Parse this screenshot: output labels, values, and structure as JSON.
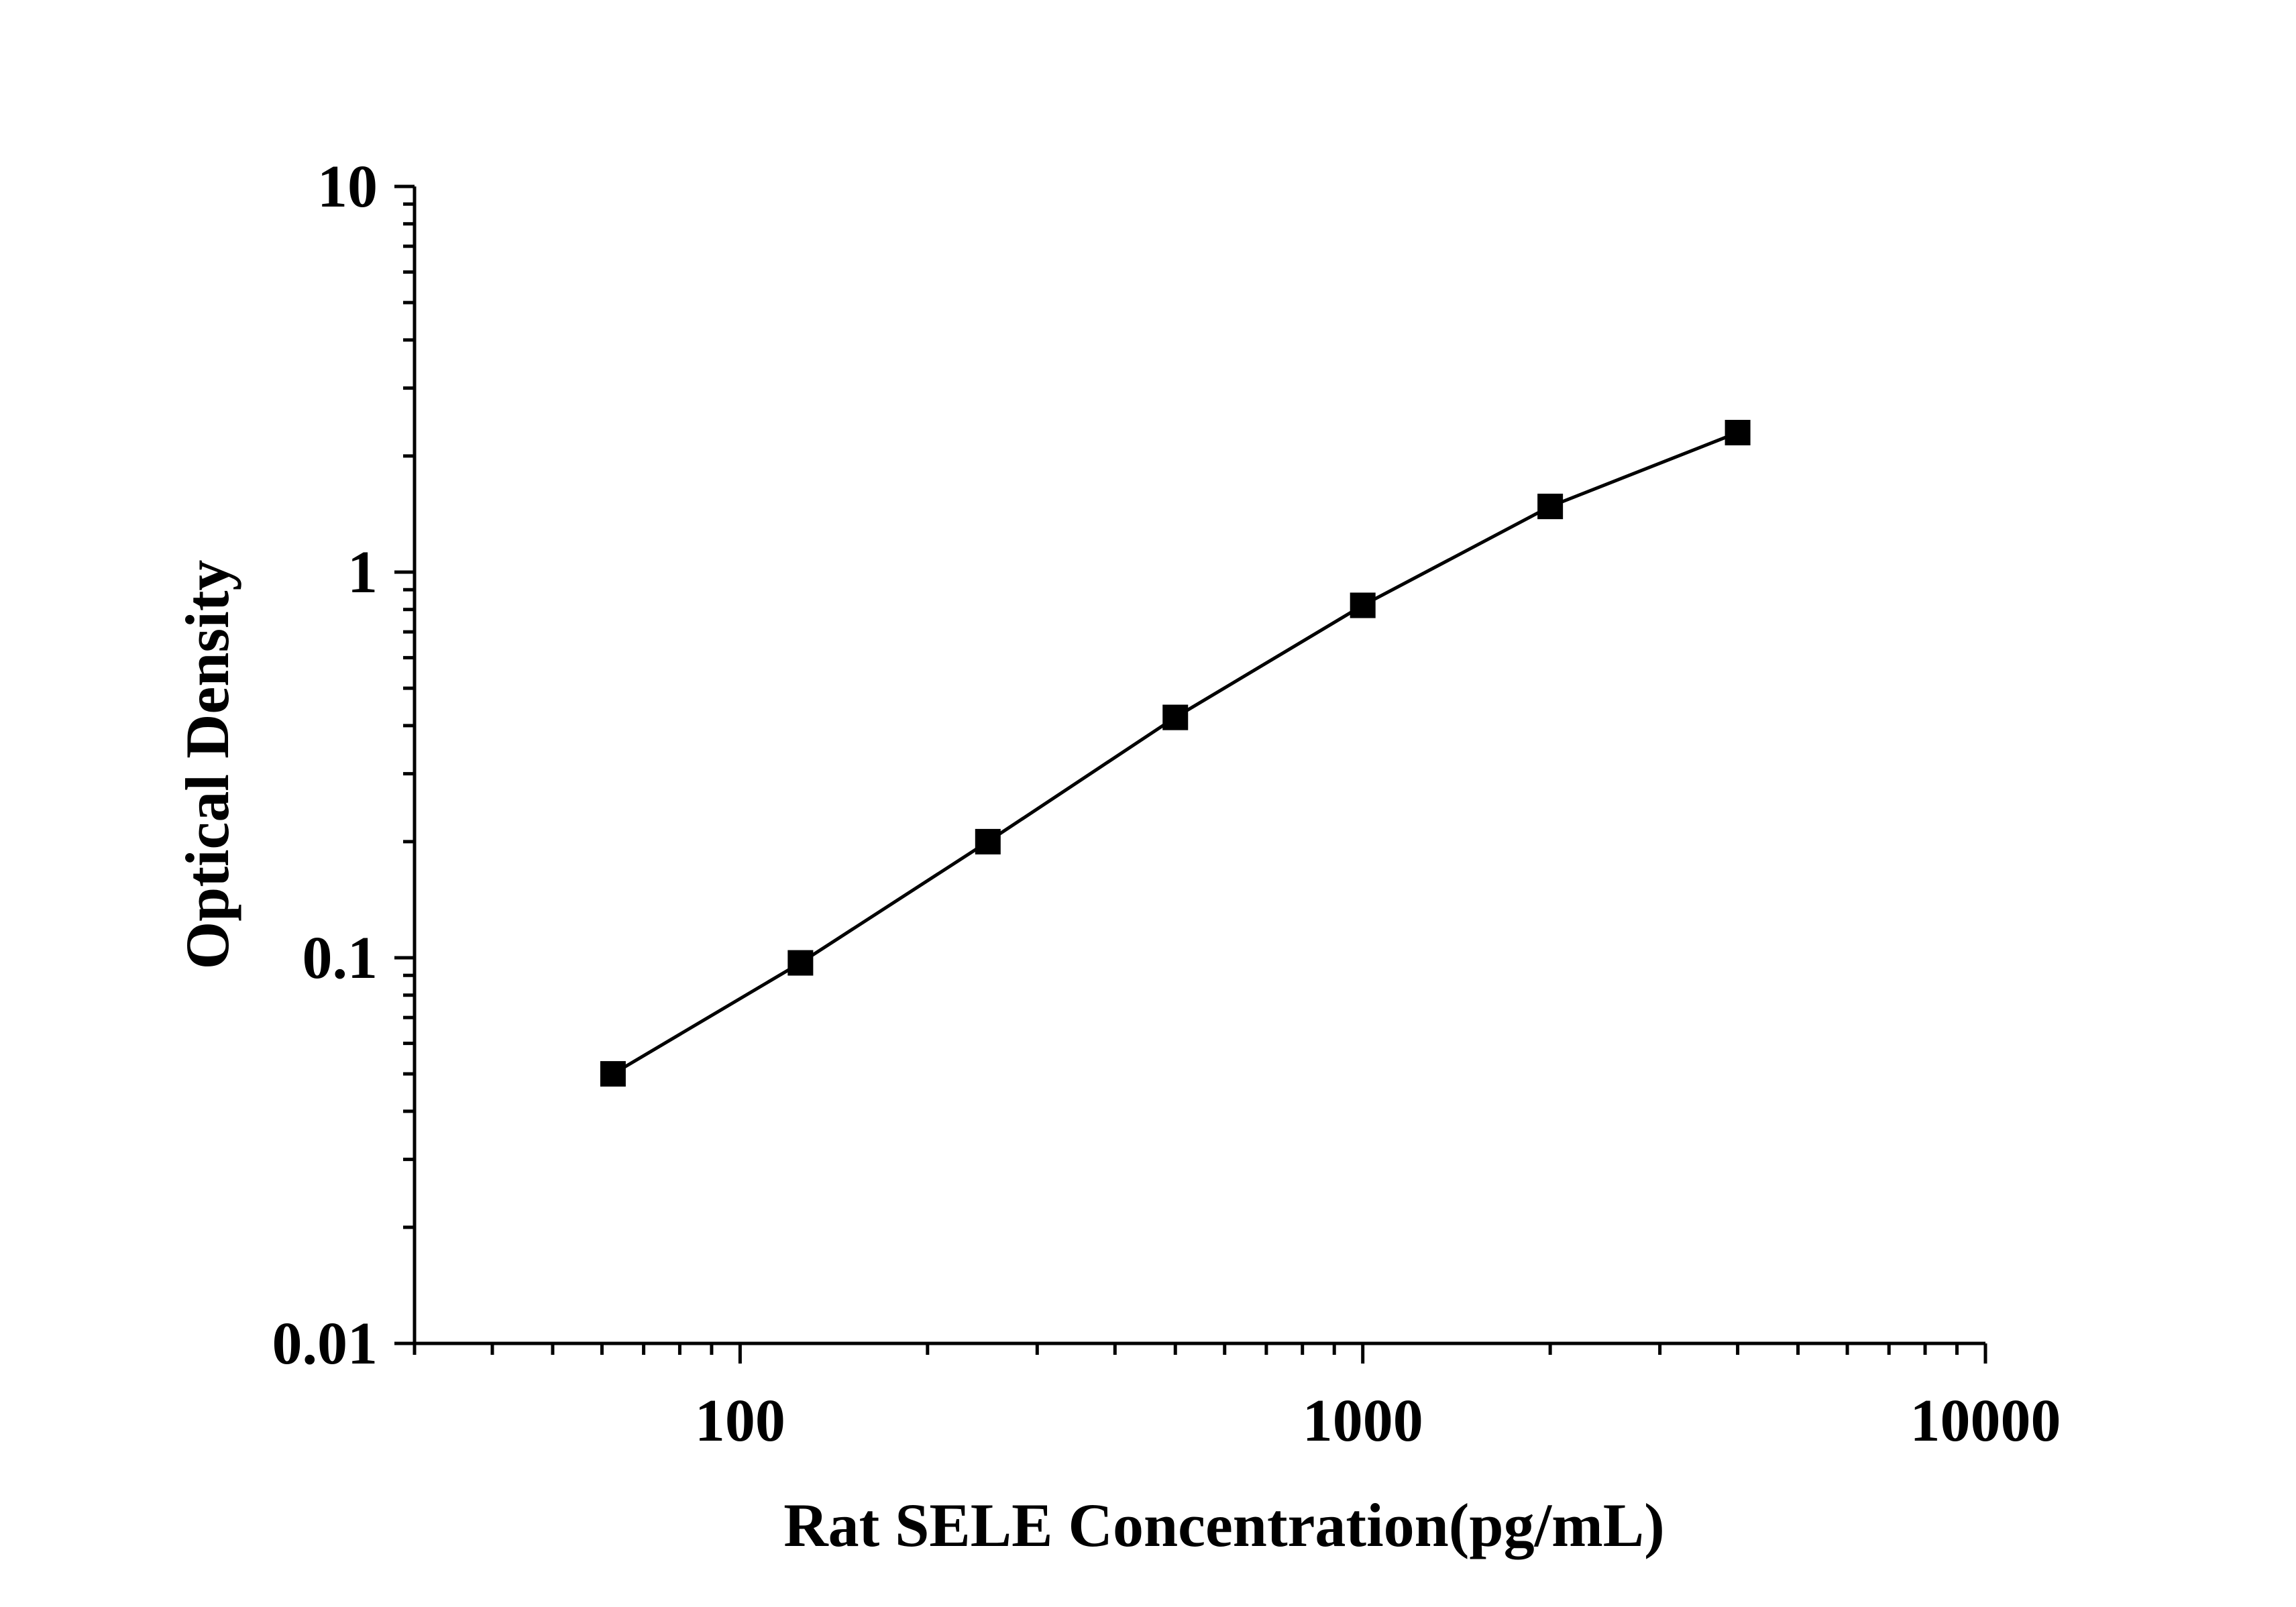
{
  "chart_data": {
    "type": "line",
    "title": "",
    "xlabel": "Rat SELE Concentration(pg/mL)",
    "ylabel": "Optical Density",
    "x_scale": "log",
    "y_scale": "log",
    "xlim": [
      30,
      10000
    ],
    "ylim": [
      0.01,
      10
    ],
    "grid": false,
    "legend": "none",
    "x_ticks": [
      "100",
      "1000",
      "10000"
    ],
    "y_ticks": [
      "0.01",
      "0.1",
      "1",
      "10"
    ],
    "series": [
      {
        "marker": "square",
        "color": "#000000",
        "x": [
          62.5,
          125,
          250,
          500,
          1000,
          2000,
          4000
        ],
        "y": [
          0.05,
          0.097,
          0.2,
          0.42,
          0.82,
          1.48,
          2.3
        ]
      }
    ]
  }
}
